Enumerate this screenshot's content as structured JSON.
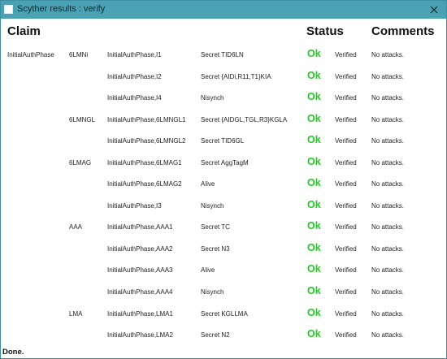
{
  "window": {
    "title": "Scyther results : verify",
    "accent": "#4aa1b3"
  },
  "header": {
    "claim": "Claim",
    "status": "Status",
    "comments": "Comments"
  },
  "rows": [
    {
      "protocol": "InitialAuthPhase",
      "role": "6LMNi",
      "id": "InitialAuthPhase,I1",
      "claim": "Secret TID6LN",
      "status": "Ok",
      "verdict": "Verified",
      "comment": "No attacks."
    },
    {
      "protocol": "",
      "role": "",
      "id": "InitialAuthPhase,I2",
      "claim": "Secret {AIDi,R11,T1}KIA",
      "status": "Ok",
      "verdict": "Verified",
      "comment": "No attacks."
    },
    {
      "protocol": "",
      "role": "",
      "id": "InitialAuthPhase,I4",
      "claim": "Nisynch",
      "status": "Ok",
      "verdict": "Verified",
      "comment": "No attacks."
    },
    {
      "protocol": "",
      "role": "6LMNGL",
      "id": "InitialAuthPhase,6LMNGL1",
      "claim": "Secret {AIDGL,TGL,R3}KGLA",
      "status": "Ok",
      "verdict": "Verified",
      "comment": "No attacks."
    },
    {
      "protocol": "",
      "role": "",
      "id": "InitialAuthPhase,6LMNGL2",
      "claim": "Secret TID6GL",
      "status": "Ok",
      "verdict": "Verified",
      "comment": "No attacks."
    },
    {
      "protocol": "",
      "role": "6LMAG",
      "id": "InitialAuthPhase,6LMAG1",
      "claim": "Secret AggTagM",
      "status": "Ok",
      "verdict": "Verified",
      "comment": "No attacks."
    },
    {
      "protocol": "",
      "role": "",
      "id": "InitialAuthPhase,6LMAG2",
      "claim": "Alive",
      "status": "Ok",
      "verdict": "Verified",
      "comment": "No attacks."
    },
    {
      "protocol": "",
      "role": "",
      "id": "InitialAuthPhase,I3",
      "claim": "Nisynch",
      "status": "Ok",
      "verdict": "Verified",
      "comment": "No attacks."
    },
    {
      "protocol": "",
      "role": "AAA",
      "id": "InitialAuthPhase,AAA1",
      "claim": "Secret TC",
      "status": "Ok",
      "verdict": "Verified",
      "comment": "No attacks."
    },
    {
      "protocol": "",
      "role": "",
      "id": "InitialAuthPhase,AAA2",
      "claim": "Secret N3",
      "status": "Ok",
      "verdict": "Verified",
      "comment": "No attacks."
    },
    {
      "protocol": "",
      "role": "",
      "id": "InitialAuthPhase,AAA3",
      "claim": "Alive",
      "status": "Ok",
      "verdict": "Verified",
      "comment": "No attacks."
    },
    {
      "protocol": "",
      "role": "",
      "id": "InitialAuthPhase,AAA4",
      "claim": "Nisynch",
      "status": "Ok",
      "verdict": "Verified",
      "comment": "No attacks."
    },
    {
      "protocol": "",
      "role": "LMA",
      "id": "InitialAuthPhase,LMA1",
      "claim": "Secret KGLLMA",
      "status": "Ok",
      "verdict": "Verified",
      "comment": "No attacks."
    },
    {
      "protocol": "",
      "role": "",
      "id": "InitialAuthPhase,LMA2",
      "claim": "Secret N2",
      "status": "Ok",
      "verdict": "Verified",
      "comment": "No attacks."
    }
  ],
  "statusbar": {
    "text": "Done."
  },
  "colors": {
    "ok": "#22cc22"
  }
}
